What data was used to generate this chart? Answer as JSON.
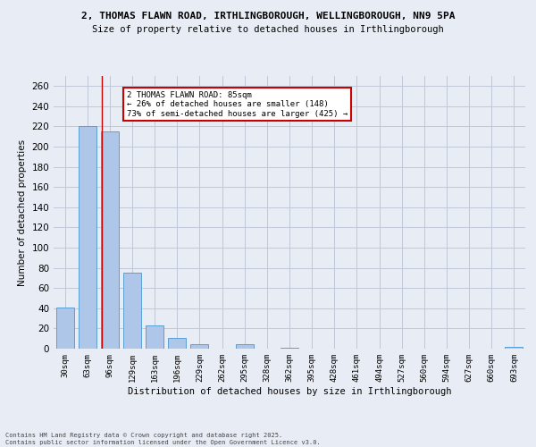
{
  "title_line1": "2, THOMAS FLAWN ROAD, IRTHLINGBOROUGH, WELLINGBOROUGH, NN9 5PA",
  "title_line2": "Size of property relative to detached houses in Irthlingborough",
  "xlabel": "Distribution of detached houses by size in Irthlingborough",
  "ylabel": "Number of detached properties",
  "categories": [
    "30sqm",
    "63sqm",
    "96sqm",
    "129sqm",
    "163sqm",
    "196sqm",
    "229sqm",
    "262sqm",
    "295sqm",
    "328sqm",
    "362sqm",
    "395sqm",
    "428sqm",
    "461sqm",
    "494sqm",
    "527sqm",
    "560sqm",
    "594sqm",
    "627sqm",
    "660sqm",
    "693sqm"
  ],
  "values": [
    41,
    220,
    215,
    75,
    23,
    11,
    4,
    0,
    4,
    0,
    1,
    0,
    0,
    0,
    0,
    0,
    0,
    0,
    0,
    0,
    2
  ],
  "bar_color": "#aec6e8",
  "bar_edge_color": "#5a9fd4",
  "grid_color": "#c0c8d8",
  "bg_color": "#e8edf5",
  "annotation_title": "2 THOMAS FLAWN ROAD: 85sqm",
  "annotation_line2": "← 26% of detached houses are smaller (148)",
  "annotation_line3": "73% of semi-detached houses are larger (425) →",
  "annotation_box_color": "#ffffff",
  "annotation_box_edge": "#cc0000",
  "red_line_color": "#cc0000",
  "footer_line1": "Contains HM Land Registry data © Crown copyright and database right 2025.",
  "footer_line2": "Contains public sector information licensed under the Open Government Licence v3.0.",
  "ylim": [
    0,
    270
  ],
  "yticks": [
    0,
    20,
    40,
    60,
    80,
    100,
    120,
    140,
    160,
    180,
    200,
    220,
    240,
    260
  ]
}
